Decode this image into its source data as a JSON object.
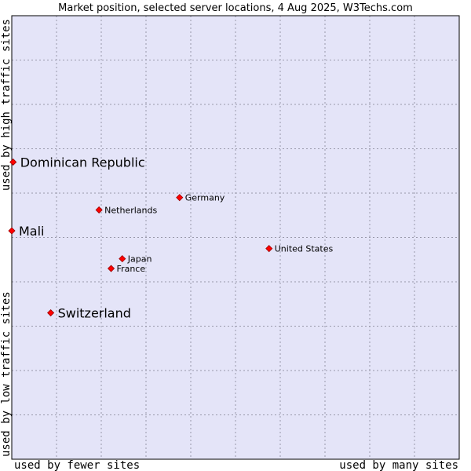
{
  "chart_data": {
    "type": "scatter",
    "title": "Market position, selected server locations, 4 Aug 2025, W3Techs.com",
    "xlabel_left": "used by fewer sites",
    "xlabel_right": "used by many sites",
    "ylabel_top": "used by high traffic sites",
    "ylabel_bottom": "used by low traffic sites",
    "xlim": [
      0,
      100
    ],
    "ylim": [
      0,
      100
    ],
    "grid": true,
    "colors": {
      "plot_bg": "#e4e4f8",
      "grid": "#9999aa",
      "border": "#000000",
      "point": "#ff0000",
      "point_edge": "#990000"
    },
    "points": [
      {
        "label": "Dominican Republic",
        "x": 0.3,
        "y": 67,
        "size": "large"
      },
      {
        "label": "Mali",
        "x": 0,
        "y": 51.5,
        "size": "large"
      },
      {
        "label": "Switzerland",
        "x": 8.7,
        "y": 33,
        "size": "large"
      },
      {
        "label": "Germany",
        "x": 37.5,
        "y": 59,
        "size": "small"
      },
      {
        "label": "Netherlands",
        "x": 19.5,
        "y": 56.2,
        "size": "small"
      },
      {
        "label": "United States",
        "x": 57.5,
        "y": 47.5,
        "size": "small"
      },
      {
        "label": "Japan",
        "x": 24.7,
        "y": 45.2,
        "size": "small"
      },
      {
        "label": "France",
        "x": 22.2,
        "y": 43,
        "size": "small"
      }
    ]
  }
}
